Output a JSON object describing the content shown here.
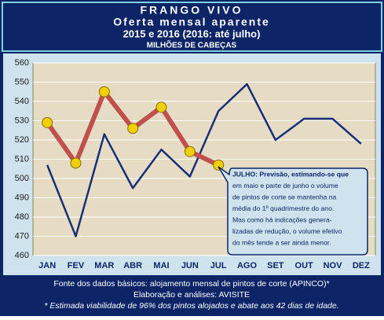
{
  "chart_data": {
    "type": "line",
    "title": "FRANGO VIVO",
    "subtitle": "Oferta mensal aparente",
    "subtitle2": "2015 e 2016 (2016: até julho)",
    "ylabel": "MILHÕES DE CABEÇAS",
    "categories": [
      "JAN",
      "FEV",
      "MAR",
      "ABR",
      "MAI",
      "JUN",
      "JUL",
      "AGO",
      "SET",
      "OUT",
      "NOV",
      "DEZ"
    ],
    "series": [
      {
        "color": "#1a2f7a",
        "values": [
          507,
          470,
          523,
          495,
          515,
          501,
          535,
          549,
          520,
          531,
          531,
          518
        ]
      },
      {
        "color": "#c0504d",
        "marker_color": "#f2d000",
        "values": [
          529,
          508,
          545,
          526,
          537,
          514,
          507,
          null,
          null,
          null,
          null,
          null
        ]
      }
    ],
    "ylim": [
      460,
      560
    ],
    "yticks": [
      460,
      470,
      480,
      490,
      500,
      510,
      520,
      530,
      540,
      550,
      560
    ],
    "grid": true,
    "annotation": [
      "JULHO: Previsão, estimando-se que",
      "em maio e parte de junho o volume",
      "de pintos de corte se mantenha na",
      "média do 1º quadrimestre do ano.",
      "Mas como há indicações genera-",
      "lizadas de redução, o volume efetivo",
      "do mês tende a ser ainda menor."
    ],
    "footer": [
      "Fonte dos dados básicos: alojamento mensal de pintos de corte (APINCO)*",
      "Elaboração e análises: AVISITE",
      "* Estimada viabilidade de 96% dos pintos alojados e abate aos 42 dias de idade."
    ]
  }
}
